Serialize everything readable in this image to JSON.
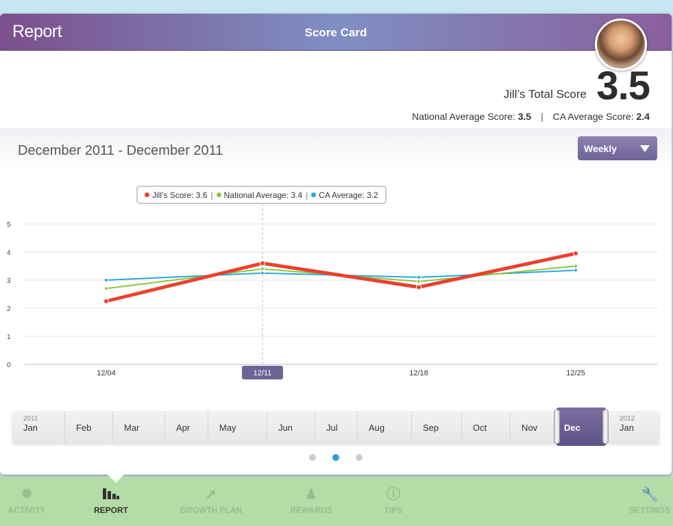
{
  "header": {
    "section_title": "Report",
    "title": "Score Card"
  },
  "score": {
    "total_label": "Jill’s Total Score",
    "total_value": "3.5",
    "national_label": "National Average Score:",
    "national_value": "3.5",
    "separator": "|",
    "ca_label": "CA Average Score:",
    "ca_value": "2.4"
  },
  "chart_header": {
    "date_range": "December 2011 - December 2011",
    "period_selected": "Weekly"
  },
  "tooltip": {
    "jill": "Jill’s Score: 3.6",
    "national": "National Average: 3.4",
    "ca": "CA Average: 3.2",
    "separator": "|"
  },
  "colors": {
    "jill": "#e8412f",
    "national": "#8dc63f",
    "ca": "#2aa5dc",
    "accent": "#6f6498"
  },
  "chart_data": {
    "type": "line",
    "x": [
      "12/04",
      "12/11",
      "12/18",
      "12/25"
    ],
    "selected_x": "12/11",
    "yticks": [
      "0",
      "1",
      "2",
      "3",
      "4",
      "5"
    ],
    "ylim": [
      0,
      5
    ],
    "grid": true,
    "series": [
      {
        "name": "Jill’s Score",
        "values": [
          2.25,
          3.6,
          2.75,
          3.95
        ],
        "color": "#e8412f"
      },
      {
        "name": "National Average",
        "values": [
          2.7,
          3.4,
          2.95,
          3.5
        ],
        "color": "#8dc63f"
      },
      {
        "name": "CA Average",
        "values": [
          3.0,
          3.25,
          3.1,
          3.35
        ],
        "color": "#2aa5dc"
      }
    ]
  },
  "timeline": {
    "start_year": "2011",
    "end_year": "2012",
    "months": [
      "Jan",
      "Feb",
      "Mar",
      "Apr",
      "May",
      "Jun",
      "Jul",
      "Aug",
      "Sep",
      "Oct",
      "Nov"
    ],
    "selected": "Dec",
    "next": "Jan"
  },
  "pager": {
    "pages": 3,
    "current": 2
  },
  "nav": {
    "items": [
      {
        "label": "ACTIVITY",
        "icon": "gear-icon"
      },
      {
        "label": "REPORT",
        "icon": "bar-chart-icon"
      },
      {
        "label": "GROWTH PLAN",
        "icon": "arrow-icon"
      },
      {
        "label": "REWARDS",
        "icon": "trophy-icon"
      },
      {
        "label": "TIPS",
        "icon": "info-icon"
      },
      {
        "label": "SETTINGS",
        "icon": "wrench-icon"
      }
    ],
    "active": "REPORT"
  }
}
